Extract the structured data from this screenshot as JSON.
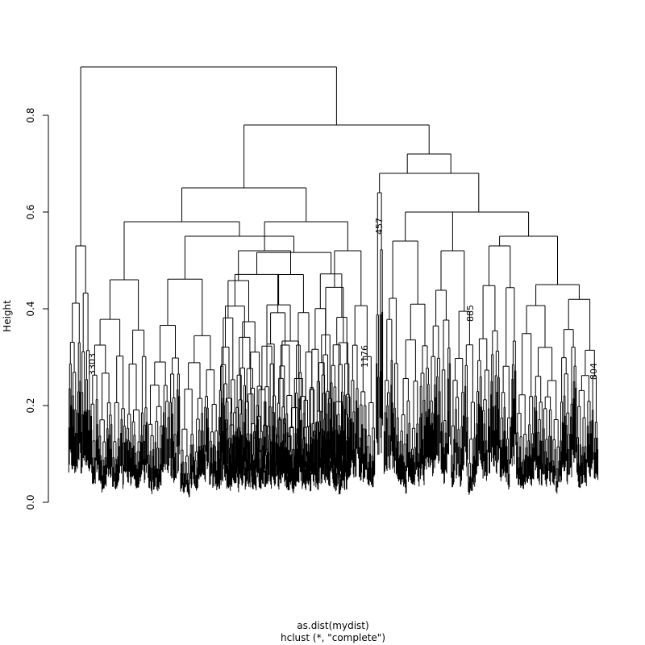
{
  "chart_data": {
    "type": "dendrogram",
    "title": "",
    "xlabel": "as.dist(mydist)",
    "sublabel": "hclust (*, \"complete\")",
    "ylabel": "Height",
    "ylim": [
      0,
      0.9
    ],
    "yticks": [
      0.0,
      0.2,
      0.4,
      0.6,
      0.8
    ],
    "ytick_labels": [
      "0.0",
      "0.2",
      "0.4",
      "0.6",
      "0.8"
    ],
    "method": "complete",
    "merges": [
      {
        "h": 0.9
      },
      {
        "h": 0.78
      },
      {
        "h": 0.72
      },
      {
        "h": 0.68
      },
      {
        "h": 0.65
      },
      {
        "h": 0.6
      },
      {
        "h": 0.59
      },
      {
        "h": 0.58
      },
      {
        "h": 0.55
      },
      {
        "h": 0.55
      },
      {
        "h": 0.53
      },
      {
        "h": 0.53
      },
      {
        "h": 0.52
      },
      {
        "h": 0.52
      },
      {
        "h": 0.51
      },
      {
        "h": 0.45
      },
      {
        "h": 0.45
      }
    ],
    "visible_leaf_labels": [
      "457",
      "3303",
      "1176",
      "885",
      "804"
    ]
  }
}
